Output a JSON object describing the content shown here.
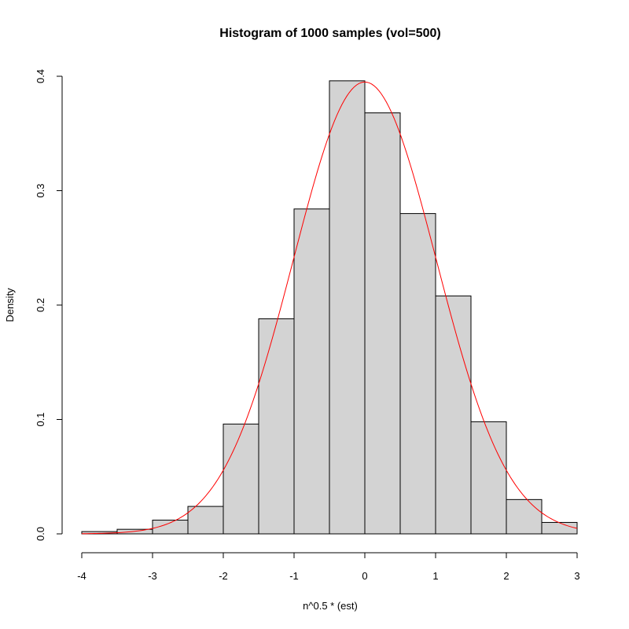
{
  "chart_data": {
    "type": "histogram",
    "title": "Histogram of 1000 samples (vol=500)",
    "xlabel": "n^0.5 * (est)",
    "ylabel": "Density",
    "xlim": [
      -4,
      3
    ],
    "ylim": [
      0,
      0.4
    ],
    "xticks": [
      -4,
      -3,
      -2,
      -1,
      0,
      1,
      2,
      3
    ],
    "xtick_labels": [
      "-4",
      "-3",
      "-2",
      "-1",
      "0",
      "1",
      "2",
      "3"
    ],
    "yticks": [
      0.0,
      0.1,
      0.2,
      0.3,
      0.4
    ],
    "ytick_labels": [
      "0.0",
      "0.1",
      "0.2",
      "0.3",
      "0.4"
    ],
    "bin_width": 0.5,
    "bins": [
      {
        "x0": -4.0,
        "x1": -3.5,
        "density": 0.002
      },
      {
        "x0": -3.5,
        "x1": -3.0,
        "density": 0.004
      },
      {
        "x0": -3.0,
        "x1": -2.5,
        "density": 0.012
      },
      {
        "x0": -2.5,
        "x1": -2.0,
        "density": 0.024
      },
      {
        "x0": -2.0,
        "x1": -1.5,
        "density": 0.096
      },
      {
        "x0": -1.5,
        "x1": -1.0,
        "density": 0.188
      },
      {
        "x0": -1.0,
        "x1": -0.5,
        "density": 0.284
      },
      {
        "x0": -0.5,
        "x1": 0.0,
        "density": 0.396
      },
      {
        "x0": 0.0,
        "x1": 0.5,
        "density": 0.368
      },
      {
        "x0": 0.5,
        "x1": 1.0,
        "density": 0.28
      },
      {
        "x0": 1.0,
        "x1": 1.5,
        "density": 0.208
      },
      {
        "x0": 1.5,
        "x1": 2.0,
        "density": 0.098
      },
      {
        "x0": 2.0,
        "x1": 2.5,
        "density": 0.03
      },
      {
        "x0": 2.5,
        "x1": 3.0,
        "density": 0.01
      }
    ],
    "overlay_curve": {
      "type": "line",
      "kind": "normal density",
      "mean": 0,
      "sd": 1.01,
      "range": [
        -4,
        3
      ],
      "color": "#ff0000"
    },
    "bar_fill": "#d3d3d3",
    "bar_stroke": "#000000",
    "grid": false,
    "legend": "none"
  }
}
